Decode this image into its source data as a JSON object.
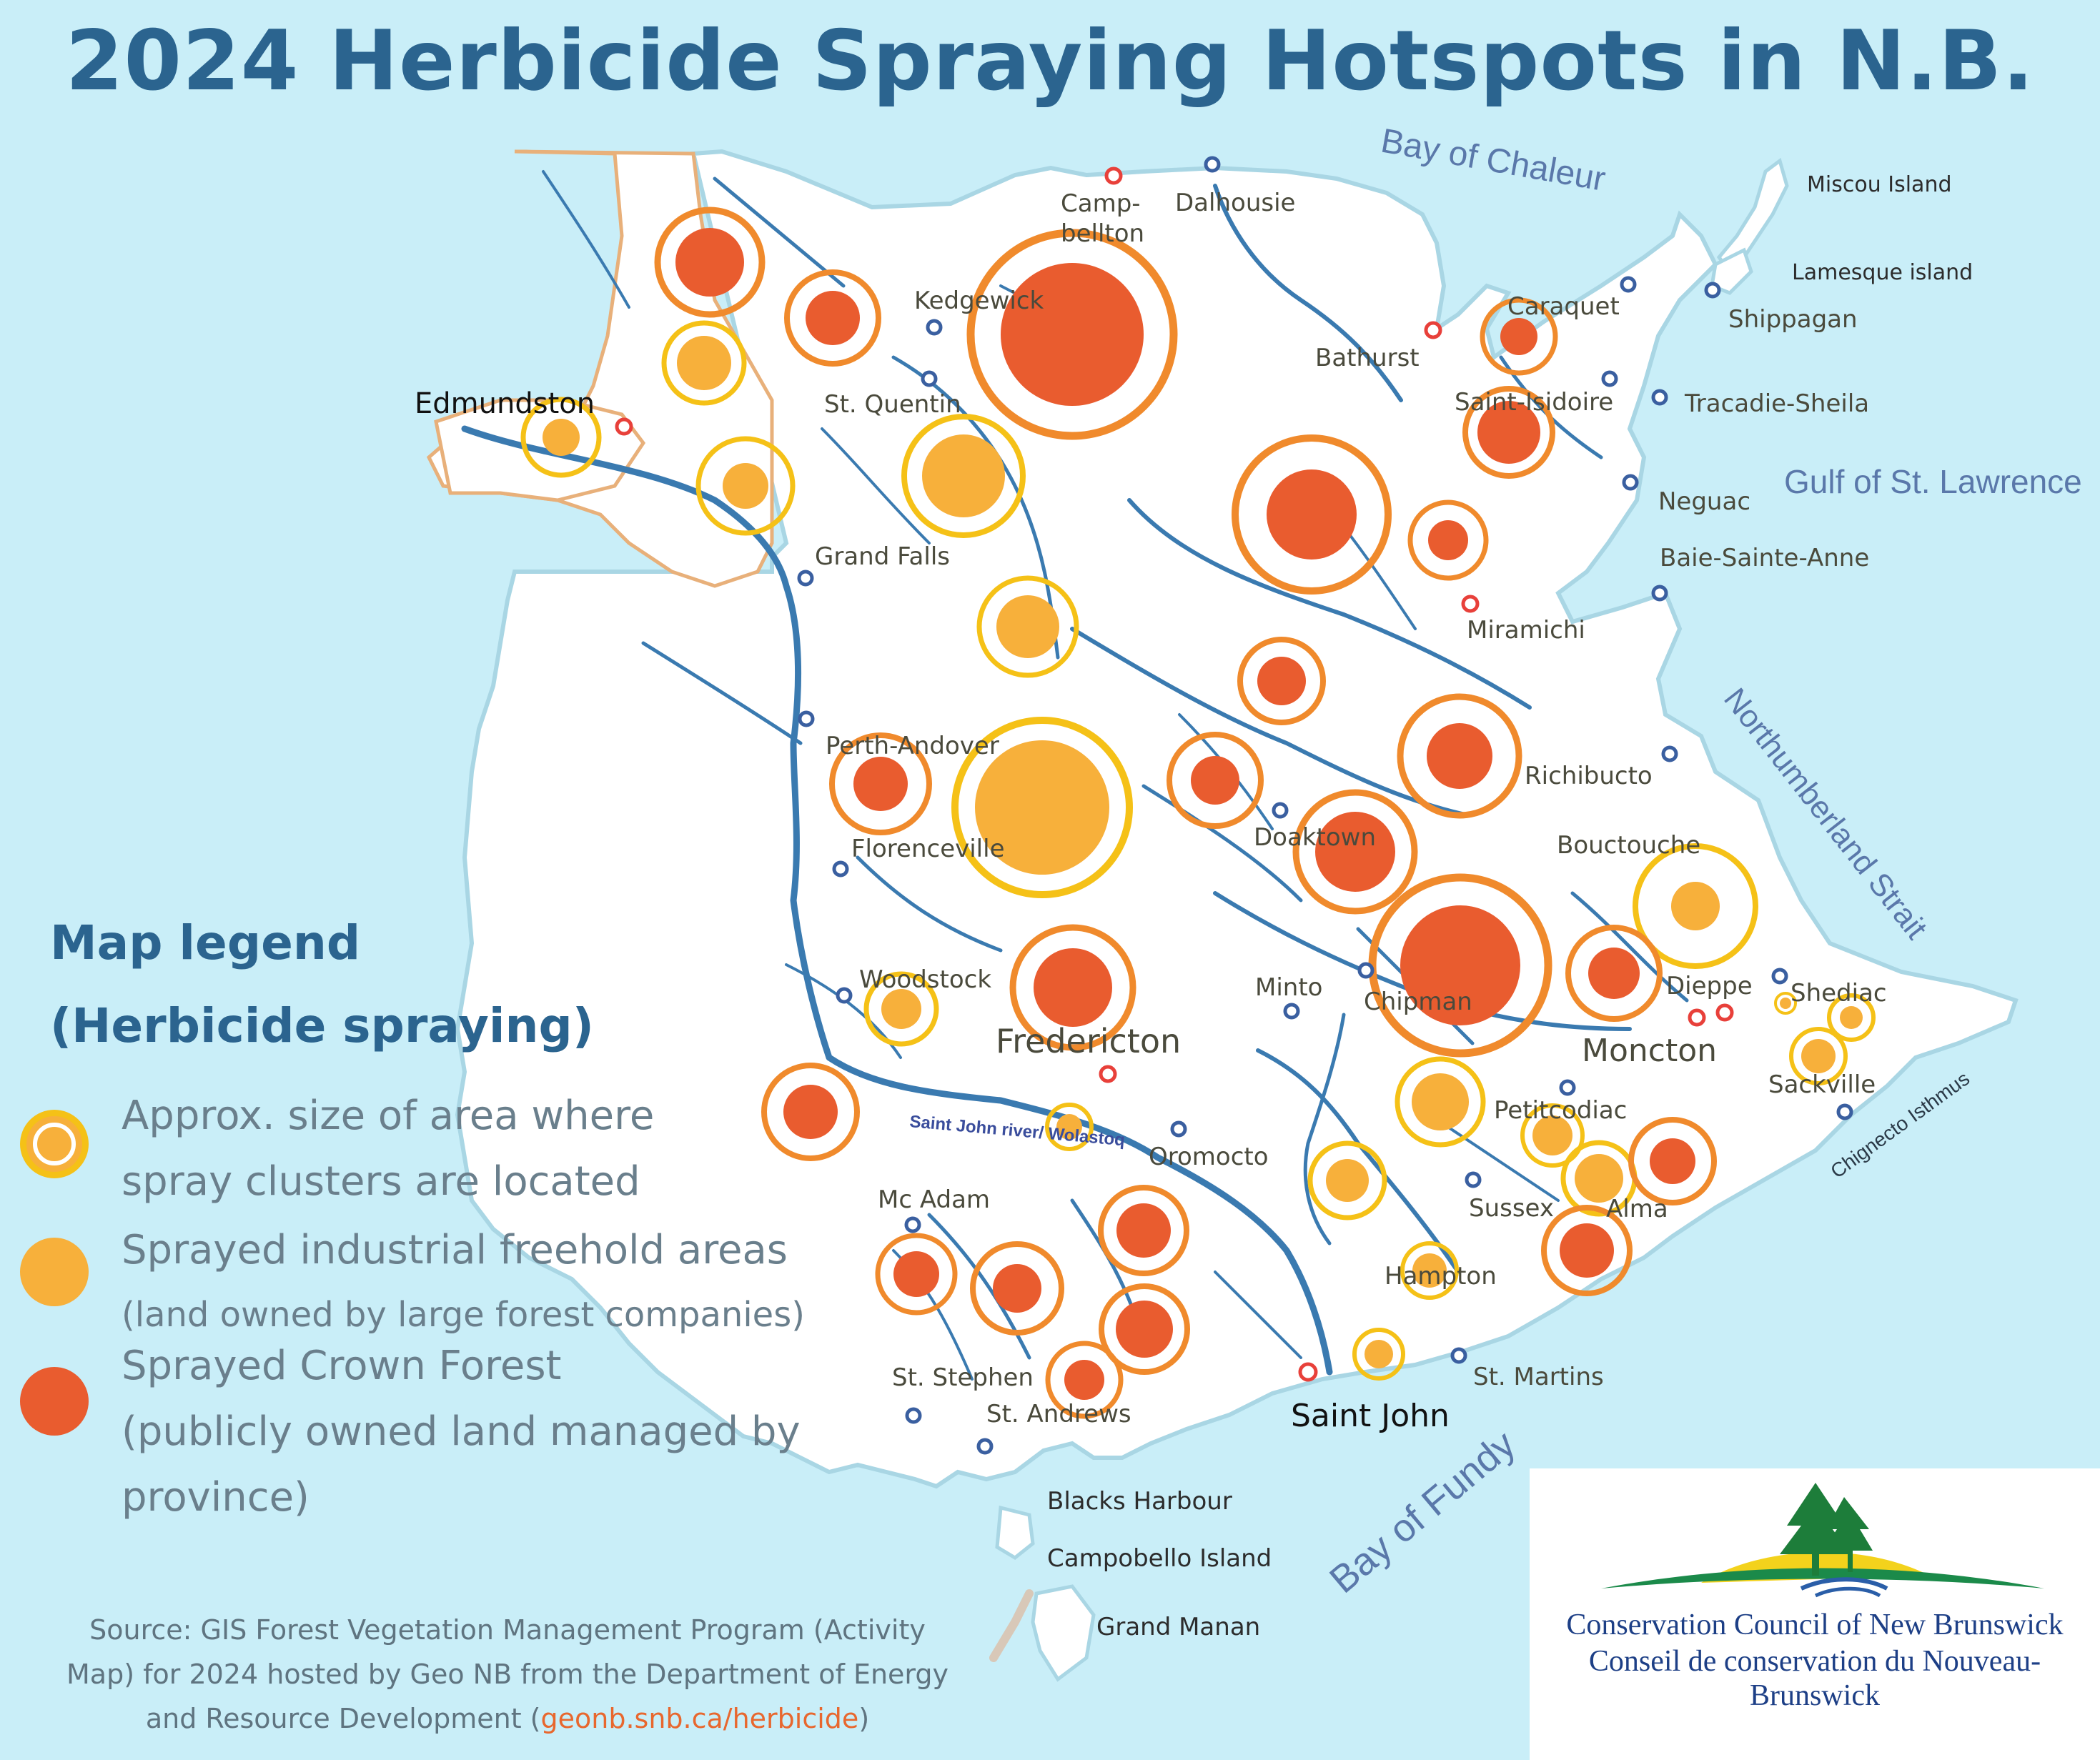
{
  "title": "2024 Herbicide Spraying Hotspots in N.B.",
  "legend": {
    "title_line1": "Map legend",
    "title_line2": "(Herbicide spraying)",
    "items": [
      {
        "label_line1": "Approx. size of area where",
        "label_line2": "spray clusters are located",
        "symbol": "ring-icon"
      },
      {
        "label_line1": "Sprayed industrial freehold areas",
        "label_line2": "(land owned by large forest companies)",
        "symbol": "freehold-dot-icon"
      },
      {
        "label_line1": "Sprayed Crown Forest",
        "label_line2": "(publicly owned land managed by",
        "label_line3": "province)",
        "symbol": "crown-dot-icon"
      }
    ]
  },
  "source": {
    "line1": "Source: GIS Forest Vegetation Management Program (Activity",
    "line2": "Map) for 2024 hosted by Geo NB from the Department of Energy",
    "line3_prefix": "and Resource Development (",
    "link": "geonb.snb.ca/herbicide",
    "line3_suffix": ")"
  },
  "logo": {
    "line_en": "Conservation Council of New Brunswick",
    "line_fr": "Conseil de conservation du Nouveau-Brunswick"
  },
  "colors": {
    "water": "#c9eef8",
    "land": "#ffffff",
    "river": "#3a7ab0",
    "title": "#2b648f",
    "freehold_fill": "#f7b03b",
    "freehold_ring": "#f5c117",
    "crown_fill": "#e95c2f",
    "crown_ring": "#f08a2c",
    "city": "#e8403a",
    "town": "#3a5fa0"
  },
  "water_labels": [
    "Bay of Chaleur",
    "Gulf of St. Lawrence",
    "Northumberland Strait",
    "Bay of Fundy",
    "Chignecto Isthmus",
    "Saint John river/ Wolastoq"
  ],
  "places": [
    {
      "name": "Edmundston",
      "kind": "city"
    },
    {
      "name": "Camp-",
      "kind": "city"
    },
    {
      "name": "bellton",
      "kind": "label"
    },
    {
      "name": "Dalhousie",
      "kind": "town"
    },
    {
      "name": "Kedgewick",
      "kind": "town"
    },
    {
      "name": "St. Quentin",
      "kind": "town"
    },
    {
      "name": "Grand Falls",
      "kind": "town"
    },
    {
      "name": "Bathurst",
      "kind": "city"
    },
    {
      "name": "Caraquet",
      "kind": "town"
    },
    {
      "name": "Shippagan",
      "kind": "town"
    },
    {
      "name": "Miscou Island",
      "kind": "label"
    },
    {
      "name": "Lamesque island",
      "kind": "label"
    },
    {
      "name": "Saint-Isidoire",
      "kind": "town"
    },
    {
      "name": "Tracadie-Sheila",
      "kind": "town"
    },
    {
      "name": "Neguac",
      "kind": "town"
    },
    {
      "name": "Baie-Sainte-Anne",
      "kind": "town"
    },
    {
      "name": "Miramichi",
      "kind": "city"
    },
    {
      "name": "Perth-Andover",
      "kind": "town"
    },
    {
      "name": "Florenceville",
      "kind": "town"
    },
    {
      "name": "Doaktown",
      "kind": "town"
    },
    {
      "name": "Richibucto",
      "kind": "town"
    },
    {
      "name": "Bouctouche",
      "kind": "town"
    },
    {
      "name": "Woodstock",
      "kind": "town"
    },
    {
      "name": "Fredericton",
      "kind": "city"
    },
    {
      "name": "Minto",
      "kind": "town"
    },
    {
      "name": "Chipman",
      "kind": "town"
    },
    {
      "name": "Dieppe",
      "kind": "city"
    },
    {
      "name": "Moncton",
      "kind": "city"
    },
    {
      "name": "Shediac",
      "kind": "town"
    },
    {
      "name": "Sackville",
      "kind": "town"
    },
    {
      "name": "Oromocto",
      "kind": "town"
    },
    {
      "name": "Petitcodiac",
      "kind": "town"
    },
    {
      "name": "Sussex",
      "kind": "town"
    },
    {
      "name": "Alma",
      "kind": "town"
    },
    {
      "name": "Mc Adam",
      "kind": "town"
    },
    {
      "name": "Hampton",
      "kind": "town"
    },
    {
      "name": "St. Stephen",
      "kind": "town"
    },
    {
      "name": "St. Andrews",
      "kind": "town"
    },
    {
      "name": "Saint John",
      "kind": "city"
    },
    {
      "name": "St. Martins",
      "kind": "town"
    },
    {
      "name": "Blacks Harbour",
      "kind": "label"
    },
    {
      "name": "Campobello Island",
      "kind": "label"
    },
    {
      "name": "Grand Manan",
      "kind": "label"
    }
  ],
  "hotspots": [
    {
      "type": "crown",
      "size": "large"
    },
    {
      "type": "crown",
      "size": "medium"
    },
    {
      "type": "freehold",
      "size": "small"
    },
    {
      "type": "freehold",
      "size": "small"
    },
    {
      "type": "freehold",
      "size": "small"
    },
    {
      "type": "crown",
      "size": "xlarge"
    },
    {
      "type": "freehold",
      "size": "medium"
    },
    {
      "type": "freehold",
      "size": "medium"
    },
    {
      "type": "crown",
      "size": "medium"
    },
    {
      "type": "freehold",
      "size": "xlarge"
    },
    {
      "type": "crown",
      "size": "medium"
    },
    {
      "type": "crown",
      "size": "large"
    },
    {
      "type": "crown",
      "size": "small"
    },
    {
      "type": "crown",
      "size": "small"
    },
    {
      "type": "crown",
      "size": "medium"
    },
    {
      "type": "crown",
      "size": "medium"
    },
    {
      "type": "crown",
      "size": "medium"
    },
    {
      "type": "crown",
      "size": "medium"
    },
    {
      "type": "crown",
      "size": "large"
    },
    {
      "type": "crown",
      "size": "xlarge"
    },
    {
      "type": "freehold",
      "size": "large"
    },
    {
      "type": "crown",
      "size": "medium"
    },
    {
      "type": "freehold",
      "size": "small"
    },
    {
      "type": "crown",
      "size": "large"
    },
    {
      "type": "crown",
      "size": "medium"
    },
    {
      "type": "freehold",
      "size": "tiny"
    },
    {
      "type": "freehold",
      "size": "medium"
    },
    {
      "type": "freehold",
      "size": "small"
    },
    {
      "type": "freehold",
      "size": "small"
    },
    {
      "type": "freehold",
      "size": "small"
    },
    {
      "type": "crown",
      "size": "medium"
    },
    {
      "type": "crown",
      "size": "medium"
    },
    {
      "type": "crown",
      "size": "small"
    },
    {
      "type": "crown",
      "size": "small"
    },
    {
      "type": "crown",
      "size": "medium"
    },
    {
      "type": "freehold",
      "size": "small"
    },
    {
      "type": "crown",
      "size": "medium"
    },
    {
      "type": "crown",
      "size": "small"
    },
    {
      "type": "freehold",
      "size": "small"
    },
    {
      "type": "freehold",
      "size": "tiny"
    },
    {
      "type": "freehold",
      "size": "tiny"
    }
  ]
}
